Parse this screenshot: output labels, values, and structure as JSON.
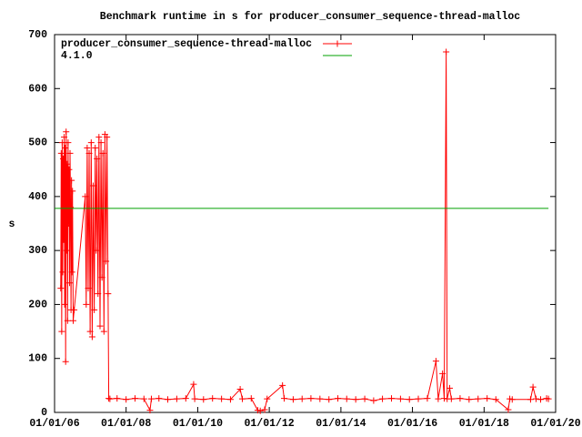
{
  "chart_data": {
    "type": "line",
    "title": "Benchmark runtime in s for producer_consumer_sequence-thread-malloc",
    "y_label": "s",
    "xlim": [
      "01/01/06",
      "01/01/20"
    ],
    "xticks": [
      "01/01/06",
      "01/01/08",
      "01/01/10",
      "01/01/12",
      "01/01/14",
      "01/01/16",
      "01/01/18",
      "01/01/20"
    ],
    "ylim": [
      0,
      700
    ],
    "yticks": [
      0,
      100,
      200,
      300,
      400,
      500,
      600,
      700
    ],
    "legend": "top-left",
    "series": [
      {
        "name": "producer_consumer_sequence-thread-malloc",
        "color": "#ff0000",
        "marker": "+",
        "x": [
          "03/05/06",
          "03/10/06",
          "03/15/06",
          "03/20/06",
          "03/25/06",
          "03/30/06",
          "04/04/06",
          "04/09/06",
          "04/14/06",
          "04/19/06",
          "04/24/06",
          "04/29/06",
          "05/04/06",
          "05/09/06",
          "05/14/06",
          "05/19/06",
          "05/24/06",
          "05/29/06",
          "06/03/06",
          "06/08/06",
          "06/13/06",
          "06/18/06",
          "06/23/06",
          "06/28/06",
          "07/03/06",
          "07/10/06",
          "07/20/06",
          "11/10/06",
          "11/20/06",
          "11/30/06",
          "12/10/06",
          "12/20/06",
          "12/30/06",
          "01/10/07",
          "01/20/07",
          "01/30/07",
          "02/10/07",
          "02/20/07",
          "03/01/07",
          "03/10/07",
          "03/20/07",
          "03/30/07",
          "04/10/07",
          "04/20/07",
          "04/30/07",
          "05/10/07",
          "05/20/07",
          "05/30/07",
          "06/10/07",
          "06/20/07",
          "07/01/07",
          "07/08/07",
          "07/20/07",
          "10/01/07",
          "01/01/08",
          "04/01/08",
          "07/01/08",
          "09/01/08",
          "09/15/08",
          "12/01/08",
          "03/01/09",
          "06/01/09",
          "09/01/09",
          "11/20/09",
          "12/01/09",
          "03/01/10",
          "06/01/10",
          "09/01/10",
          "12/01/10",
          "03/10/11",
          "04/01/11",
          "07/01/11",
          "09/05/11",
          "10/01/11",
          "11/15/11",
          "12/10/11",
          "05/15/12",
          "06/01/12",
          "09/01/12",
          "12/01/12",
          "03/01/13",
          "06/01/13",
          "09/01/13",
          "12/01/13",
          "03/01/14",
          "06/01/14",
          "09/01/14",
          "12/01/14",
          "03/01/15",
          "06/01/15",
          "09/01/15",
          "12/01/15",
          "03/01/16",
          "06/01/16",
          "08/28/16",
          "09/20/16",
          "11/03/16",
          "11/20/16",
          "12/10/16",
          "12/20/16",
          "01/15/17",
          "02/01/17",
          "05/01/17",
          "08/01/17",
          "11/01/17",
          "02/01/18",
          "05/01/18",
          "09/05/18",
          "09/20/18",
          "10/15/18",
          "04/20/19",
          "05/15/19",
          "06/15/19",
          "08/01/19",
          "10/01/19",
          "10/20/19"
        ],
        "values": [
          230,
          480,
          150,
          500,
          260,
          470,
          320,
          510,
          200,
          490,
          94,
          520,
          300,
          460,
          170,
          500,
          350,
          450,
          240,
          480,
          380,
          190,
          430,
          260,
          410,
          170,
          190,
          400,
          200,
          490,
          230,
          480,
          150,
          500,
          140,
          420,
          190,
          490,
          300,
          470,
          220,
          510,
          160,
          500,
          250,
          480,
          150,
          515,
          280,
          510,
          220,
          26,
          25,
          26,
          24,
          26,
          25,
          4,
          25,
          26,
          24,
          25,
          26,
          52,
          25,
          24,
          26,
          25,
          24,
          43,
          25,
          26,
          4,
          3,
          5,
          25,
          50,
          26,
          24,
          25,
          26,
          25,
          24,
          26,
          25,
          24,
          25,
          22,
          25,
          26,
          25,
          24,
          25,
          26,
          95,
          25,
          72,
          26,
          668,
          25,
          45,
          25,
          26,
          24,
          25,
          26,
          24,
          5,
          25,
          24,
          24,
          47,
          25,
          24,
          26,
          25
        ]
      },
      {
        "name": "4.1.0",
        "color": "#00a000",
        "x": [
          "01/01/06",
          "10/20/19"
        ],
        "values": [
          378,
          378
        ]
      }
    ]
  }
}
